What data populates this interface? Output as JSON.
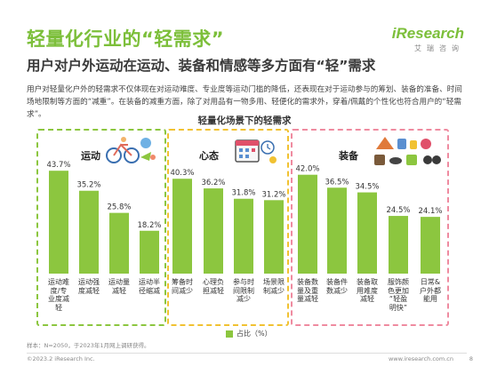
{
  "header": {
    "title": "轻量化行业的“轻需求”",
    "subtitle": "用户对户外运动在运动、装备和情感等多方面有“轻”需求",
    "logo_main": "iResearch",
    "logo_sub": "艾瑞咨询"
  },
  "intro": "用户对轻量化户外的轻需求不仅体现在对运动难度、专业度等运动门槛的降低，还表现在对于运动参与的筹划、装备的准备、时间场地限制等方面的“减重”。在装备的减重方面，除了对用品有一物多用、轻便化的需求外，穿着/佩戴的个性化也符合用户的“轻需求”。",
  "chart_data": {
    "type": "bar",
    "title": "轻量化场景下的轻需求",
    "legend": "占比（%）",
    "unit": "%",
    "ylim": [
      0,
      50
    ],
    "groups": [
      {
        "name": "运动",
        "color": "#8cc63f",
        "start": 0,
        "count": 4
      },
      {
        "name": "心态",
        "color": "#f1c232",
        "start": 4,
        "count": 4
      },
      {
        "name": "装备",
        "color": "#ef8ba0",
        "start": 8,
        "count": 5
      }
    ],
    "categories": [
      "运动难度/专业度减轻",
      "运动强度减轻",
      "运动量减轻",
      "运动半径缩减",
      "筹备时间减少",
      "心理负担减轻",
      "参与时间限制减少",
      "场景限制减少",
      "装备数量及重量减轻",
      "装备件数减少",
      "装备取用难度减轻",
      "服饰颜色更加“轻盈明快”",
      "日常&户外都能用"
    ],
    "category_lines": [
      [
        "运动难",
        "度/专",
        "业度减",
        "轻"
      ],
      [
        "运动强",
        "度减轻"
      ],
      [
        "运动量",
        "减轻"
      ],
      [
        "运动半",
        "径缩减"
      ],
      [
        "筹备时",
        "间减少"
      ],
      [
        "心理负",
        "担减轻"
      ],
      [
        "参与时",
        "间限制",
        "减少"
      ],
      [
        "场景限",
        "制减少"
      ],
      [
        "装备数",
        "量及重",
        "量减轻"
      ],
      [
        "装备件",
        "数减少"
      ],
      [
        "装备取",
        "用难度",
        "减轻"
      ],
      [
        "服饰颜",
        "色更加",
        "“轻盈",
        "明快”"
      ],
      [
        "日常&",
        "户外都",
        "能用"
      ]
    ],
    "values": [
      43.7,
      35.2,
      25.8,
      18.2,
      40.3,
      36.2,
      31.8,
      31.2,
      42.0,
      36.5,
      34.5,
      24.5,
      24.1
    ],
    "bar_color": "#8cc63f"
  },
  "footer": {
    "note": "样本：N=2050，于2023年1月网上调研获得。",
    "copyright": "©2023.2 iResearch Inc.",
    "website": "www.iresearch.com.cn",
    "page": "8"
  },
  "icons": {
    "sport": "cycling-sport-icon",
    "mindset": "calendar-clock-icon",
    "gear": "camping-gear-icon"
  }
}
